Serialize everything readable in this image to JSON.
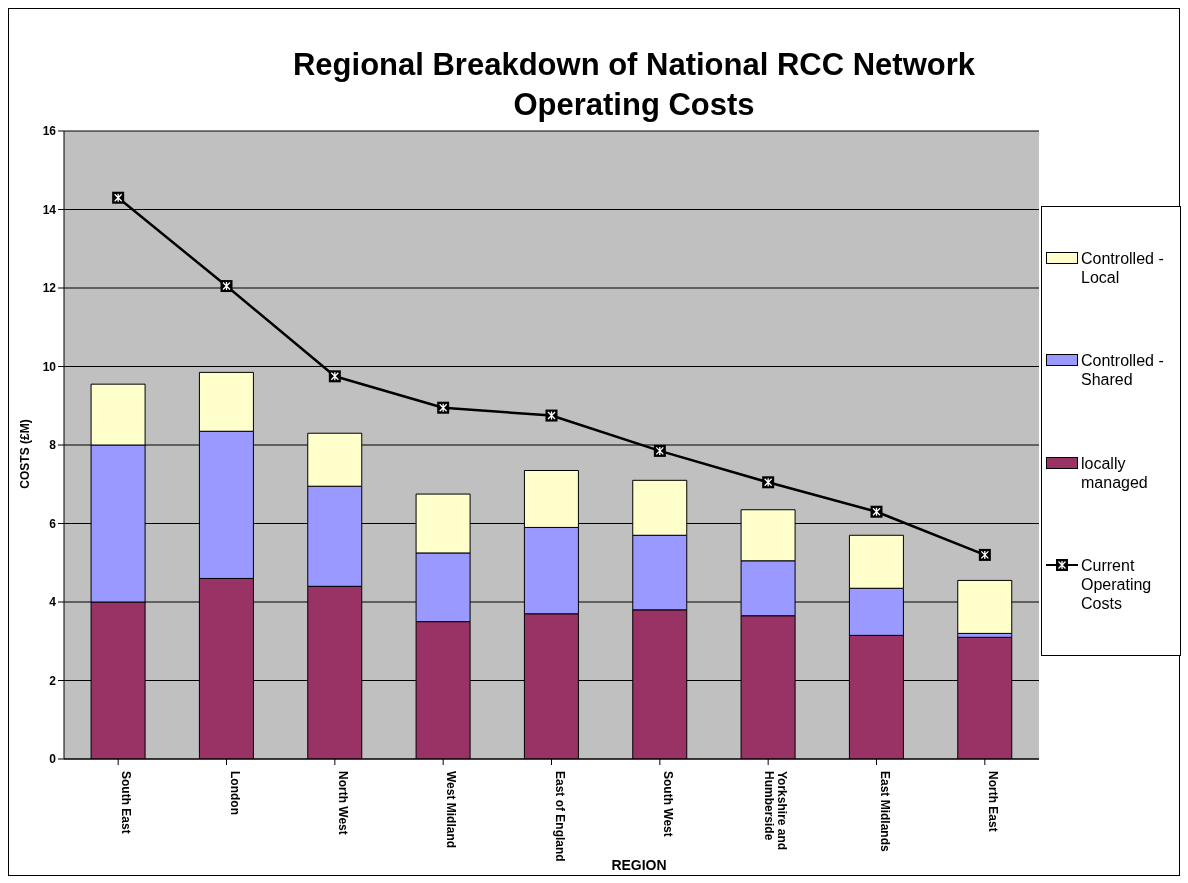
{
  "chart_data": {
    "type": "bar",
    "title": "Regional Breakdown of National RCC Network Operating Costs",
    "xlabel": "REGION",
    "ylabel": "COSTS (£M)",
    "categories": [
      "South East",
      "London",
      "North West",
      "West Midland",
      "East of England",
      "South West",
      "Yorkshire and Humberside",
      "East Midlands",
      "North East"
    ],
    "stacked": true,
    "series": [
      {
        "name": "locally managed",
        "color": "#993366",
        "values": [
          4.0,
          4.6,
          4.4,
          3.5,
          3.7,
          3.8,
          3.65,
          3.15,
          3.1
        ]
      },
      {
        "name": "Controlled - Shared",
        "color": "#9999ff",
        "values": [
          4.0,
          3.75,
          2.55,
          1.75,
          2.2,
          1.9,
          1.4,
          1.2,
          0.1
        ]
      },
      {
        "name": "Controlled - Local",
        "color": "#ffffcc",
        "values": [
          1.55,
          1.5,
          1.35,
          1.5,
          1.45,
          1.4,
          1.3,
          1.35,
          1.35
        ]
      },
      {
        "name": "Current Operating Costs",
        "type": "line",
        "color": "#000000",
        "values": [
          14.3,
          12.05,
          9.75,
          8.95,
          8.75,
          7.85,
          7.05,
          6.3,
          5.2
        ]
      }
    ],
    "ylim": [
      0,
      16
    ],
    "yticks": [
      0,
      2,
      4,
      6,
      8,
      10,
      12,
      14,
      16
    ],
    "grid": "y",
    "legend": "right",
    "marker": "square",
    "line_style": "solid"
  }
}
